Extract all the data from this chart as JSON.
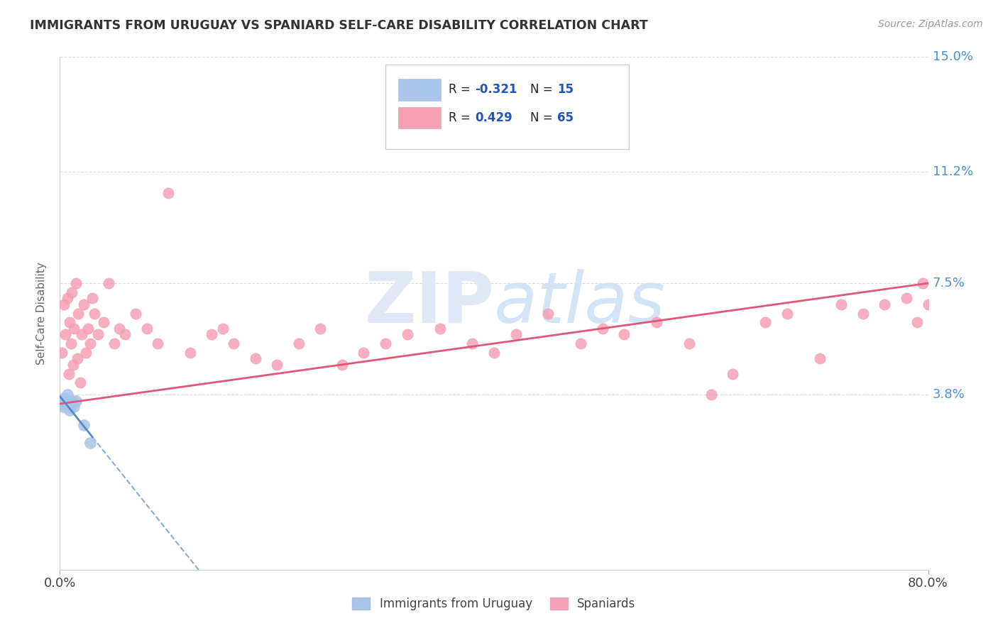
{
  "title": "IMMIGRANTS FROM URUGUAY VS SPANIARD SELF-CARE DISABILITY CORRELATION CHART",
  "source_text": "Source: ZipAtlas.com",
  "ylabel": "Self-Care Disability",
  "xlim": [
    0.0,
    80.0
  ],
  "ylim": [
    -2.0,
    15.0
  ],
  "y_tick_positions": [
    3.8,
    7.5,
    11.2,
    15.0
  ],
  "y_tick_labels": [
    "3.8%",
    "7.5%",
    "11.2%",
    "15.0%"
  ],
  "background_color": "#ffffff",
  "grid_color": "#cccccc",
  "uruguay_color": "#a8c4e8",
  "spaniard_color": "#f5a0b5",
  "uruguay_line_color": "#5588cc",
  "spaniard_line_color": "#e05878",
  "axis_label_color": "#4a90d9",
  "watermark_color": "#e0e8f5",
  "legend_label_1": "Immigrants from Uruguay",
  "legend_label_2": "Spaniards",
  "uruguay_R": -0.321,
  "uruguay_N": 15,
  "spaniard_R": 0.429,
  "spaniard_N": 65,
  "uruguay_scatter_x": [
    0.1,
    0.2,
    0.3,
    0.4,
    0.5,
    0.6,
    0.7,
    0.8,
    0.9,
    1.0,
    1.1,
    1.3,
    1.5,
    2.2,
    2.8
  ],
  "uruguay_scatter_y": [
    3.5,
    3.6,
    3.4,
    3.7,
    3.5,
    3.6,
    3.8,
    3.4,
    3.3,
    3.5,
    3.6,
    3.4,
    3.6,
    2.8,
    2.2
  ],
  "spaniard_scatter_x": [
    0.2,
    0.4,
    0.5,
    0.7,
    0.8,
    0.9,
    1.0,
    1.1,
    1.2,
    1.3,
    1.5,
    1.6,
    1.7,
    1.9,
    2.0,
    2.2,
    2.4,
    2.6,
    2.8,
    3.0,
    3.2,
    3.5,
    4.0,
    4.5,
    5.0,
    5.5,
    6.0,
    7.0,
    8.0,
    9.0,
    10.0,
    12.0,
    14.0,
    15.0,
    16.0,
    18.0,
    20.0,
    22.0,
    24.0,
    26.0,
    28.0,
    30.0,
    32.0,
    35.0,
    38.0,
    40.0,
    42.0,
    45.0,
    48.0,
    50.0,
    52.0,
    55.0,
    58.0,
    60.0,
    62.0,
    65.0,
    67.0,
    70.0,
    72.0,
    74.0,
    76.0,
    78.0,
    79.0,
    79.5,
    80.0
  ],
  "spaniard_scatter_y": [
    5.2,
    6.8,
    5.8,
    7.0,
    4.5,
    6.2,
    5.5,
    7.2,
    4.8,
    6.0,
    7.5,
    5.0,
    6.5,
    4.2,
    5.8,
    6.8,
    5.2,
    6.0,
    5.5,
    7.0,
    6.5,
    5.8,
    6.2,
    7.5,
    5.5,
    6.0,
    5.8,
    6.5,
    6.0,
    5.5,
    10.5,
    5.2,
    5.8,
    6.0,
    5.5,
    5.0,
    4.8,
    5.5,
    6.0,
    4.8,
    5.2,
    5.5,
    5.8,
    6.0,
    5.5,
    5.2,
    5.8,
    6.5,
    5.5,
    6.0,
    5.8,
    6.2,
    5.5,
    3.8,
    4.5,
    6.2,
    6.5,
    5.0,
    6.8,
    6.5,
    6.8,
    7.0,
    6.2,
    7.5,
    6.8
  ]
}
